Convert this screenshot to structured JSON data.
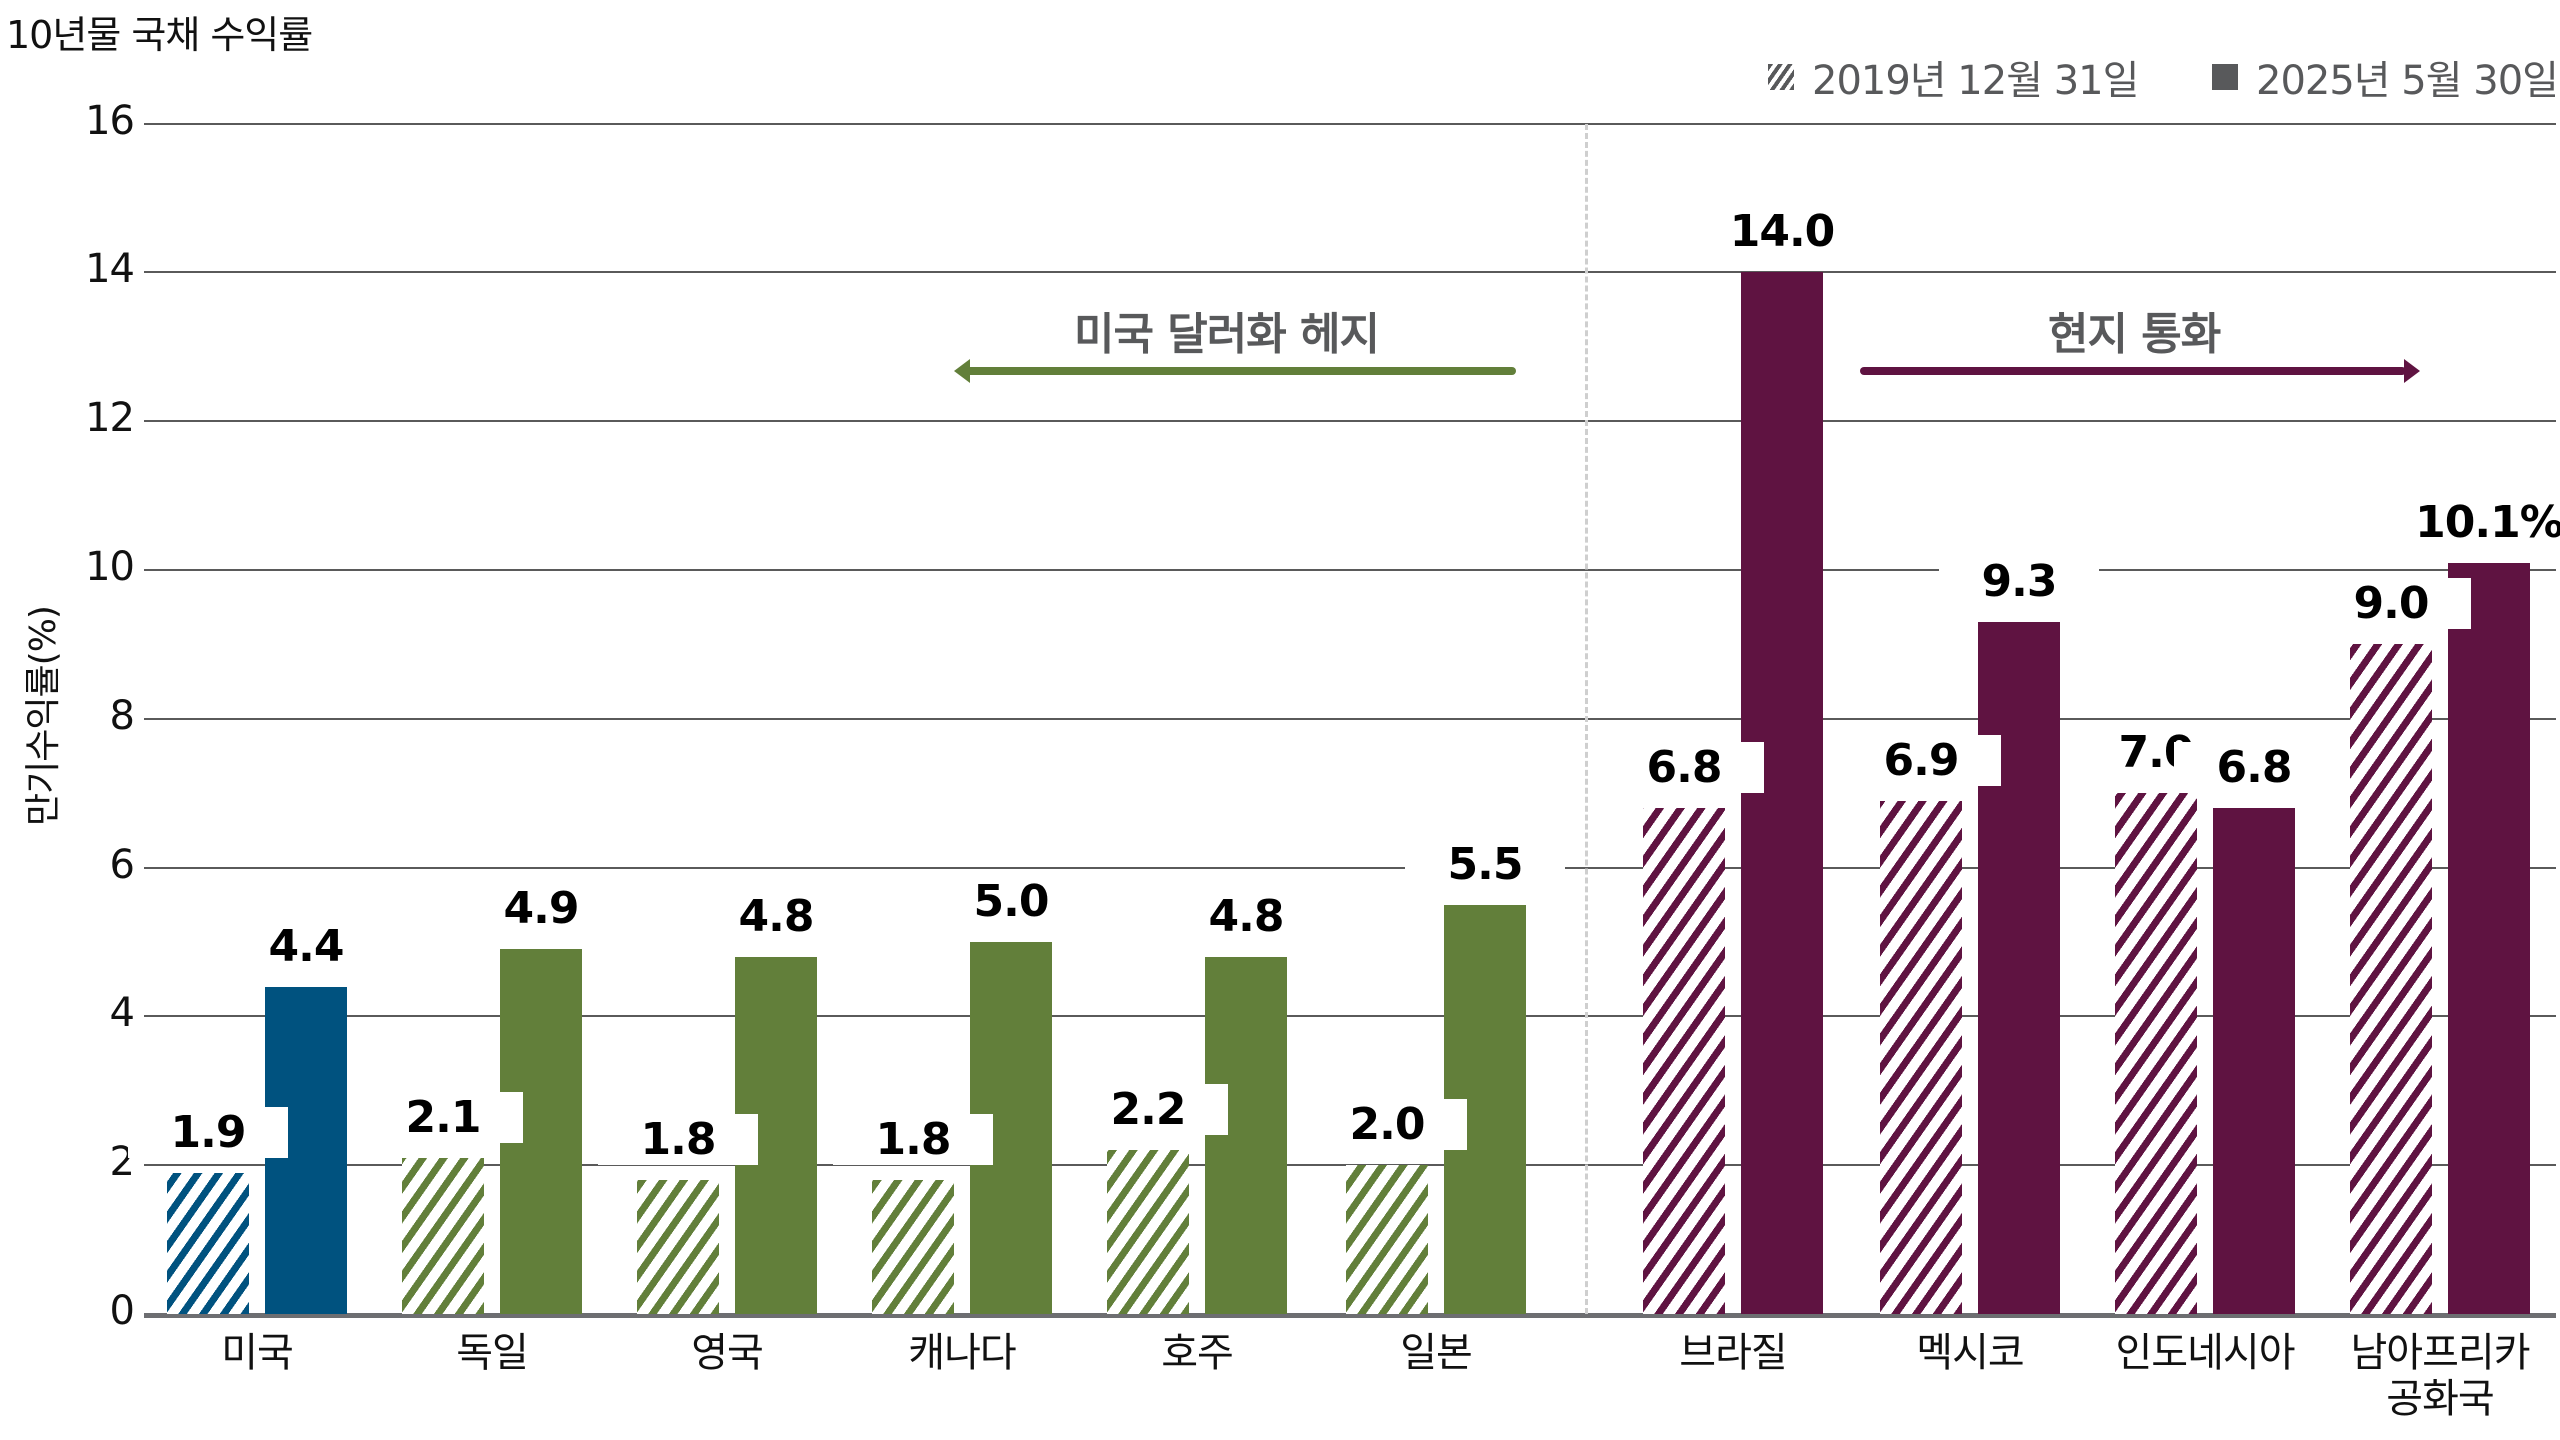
{
  "title": "10년물 국채 수익률",
  "legend": {
    "items": [
      {
        "label": "2019년 12월 31일",
        "style": "hatched"
      },
      {
        "label": "2025년 5월 30일",
        "style": "solid"
      }
    ]
  },
  "y_axis": {
    "label": "만기수익률(%)",
    "ticks": [
      "0",
      "2",
      "4",
      "6",
      "8",
      "10",
      "12",
      "14",
      "16"
    ]
  },
  "annotations": {
    "left_group": "미국 달러화 헤지",
    "right_group": "현지 통화"
  },
  "colors": {
    "usa": "#00527f",
    "hedged": "#627f3a",
    "local": "#5f1341",
    "gridline": "#5a5a5a",
    "annotation": "#58595b"
  },
  "categories": [
    {
      "name": "미국",
      "v2019": "1.9",
      "v2025": "4.4"
    },
    {
      "name": "독일",
      "v2019": "2.1",
      "v2025": "4.9"
    },
    {
      "name": "영국",
      "v2019": "1.8",
      "v2025": "4.8"
    },
    {
      "name": "캐나다",
      "v2019": "1.8",
      "v2025": "5.0"
    },
    {
      "name": "호주",
      "v2019": "2.2",
      "v2025": "4.8"
    },
    {
      "name": "일본",
      "v2019": "2.0",
      "v2025": "5.5"
    },
    {
      "name": "브라질",
      "v2019": "6.8",
      "v2025": "14.0"
    },
    {
      "name": "멕시코",
      "v2019": "6.9",
      "v2025": "9.3"
    },
    {
      "name": "인도네시아",
      "v2019": "7.0",
      "v2025": "6.8"
    },
    {
      "name": "남아프리카\n공화국",
      "v2019": "9.0",
      "v2025": "10.1%"
    }
  ],
  "chart_data": {
    "type": "bar",
    "title": "10년물 국채 수익률",
    "xlabel": "",
    "ylabel": "만기수익률(%)",
    "ylim": [
      0,
      16
    ],
    "yticks": [
      0,
      2,
      4,
      6,
      8,
      10,
      12,
      14,
      16
    ],
    "grid": true,
    "legend_position": "top-right",
    "categories": [
      "미국",
      "독일",
      "영국",
      "캐나다",
      "호주",
      "일본",
      "브라질",
      "멕시코",
      "인도네시아",
      "남아프리카 공화국"
    ],
    "series": [
      {
        "name": "2019년 12월 31일",
        "values": [
          1.9,
          2.1,
          1.8,
          1.8,
          2.2,
          2.0,
          6.8,
          6.9,
          7.0,
          9.0
        ]
      },
      {
        "name": "2025년 5월 30일",
        "values": [
          4.4,
          4.9,
          4.8,
          5.0,
          4.8,
          5.5,
          14.0,
          9.3,
          6.8,
          10.1
        ]
      }
    ],
    "groups": [
      {
        "label": "미국 달러화 헤지",
        "categories": [
          "독일",
          "영국",
          "캐나다",
          "호주",
          "일본"
        ]
      },
      {
        "label": "현지 통화",
        "categories": [
          "브라질",
          "멕시코",
          "인도네시아",
          "남아프리카 공화국"
        ]
      }
    ]
  }
}
